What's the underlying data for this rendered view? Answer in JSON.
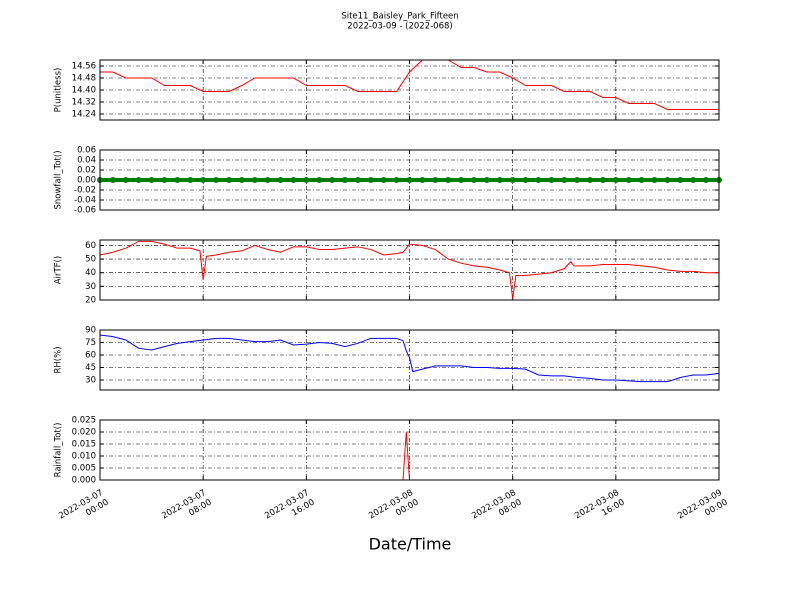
{
  "chart_data": [
    {
      "type": "line",
      "title": "Site11_Baisley_Park_Fifteen",
      "subtitle": "2022-03-09 - (2022-068)",
      "ylabel": "P(unitless)",
      "color": "#ff0000",
      "x": [
        "2022-03-07 00:00",
        "2022-03-07 01:00",
        "2022-03-07 02:00",
        "2022-03-07 03:00",
        "2022-03-07 04:00",
        "2022-03-07 05:00",
        "2022-03-07 06:00",
        "2022-03-07 07:00",
        "2022-03-07 08:00",
        "2022-03-07 09:00",
        "2022-03-07 10:00",
        "2022-03-07 11:00",
        "2022-03-07 12:00",
        "2022-03-07 13:00",
        "2022-03-07 14:00",
        "2022-03-07 15:00",
        "2022-03-07 16:00",
        "2022-03-07 17:00",
        "2022-03-07 18:00",
        "2022-03-07 19:00",
        "2022-03-07 20:00",
        "2022-03-07 21:00",
        "2022-03-07 22:00",
        "2022-03-07 23:00",
        "2022-03-08 00:00",
        "2022-03-08 01:00",
        "2022-03-08 02:00",
        "2022-03-08 03:00",
        "2022-03-08 04:00",
        "2022-03-08 05:00",
        "2022-03-08 06:00",
        "2022-03-08 07:00",
        "2022-03-08 08:00",
        "2022-03-08 09:00",
        "2022-03-08 10:00",
        "2022-03-08 11:00",
        "2022-03-08 12:00",
        "2022-03-08 13:00",
        "2022-03-08 14:00",
        "2022-03-08 15:00",
        "2022-03-08 16:00",
        "2022-03-08 17:00",
        "2022-03-08 18:00",
        "2022-03-08 19:00",
        "2022-03-08 20:00",
        "2022-03-08 21:00",
        "2022-03-08 22:00",
        "2022-03-08 23:00",
        "2022-03-09 00:00"
      ],
      "values": [
        14.52,
        14.52,
        14.48,
        14.48,
        14.48,
        14.43,
        14.43,
        14.43,
        14.39,
        14.39,
        14.39,
        14.43,
        14.48,
        14.48,
        14.48,
        14.48,
        14.43,
        14.43,
        14.43,
        14.43,
        14.39,
        14.39,
        14.39,
        14.39,
        14.52,
        14.6,
        14.6,
        14.6,
        14.55,
        14.55,
        14.52,
        14.52,
        14.48,
        14.43,
        14.43,
        14.43,
        14.39,
        14.39,
        14.39,
        14.35,
        14.35,
        14.31,
        14.31,
        14.31,
        14.27,
        14.27,
        14.27,
        14.27,
        14.27
      ],
      "xlim": [
        "2022-03-07 00:00",
        "2022-03-09 00:00"
      ],
      "ylim": [
        14.2,
        14.6
      ],
      "yticks": [
        14.24,
        14.32,
        {
          "value": 14.4,
          "label": "14.40"
        },
        14.48,
        14.56
      ],
      "grid": true
    },
    {
      "type": "line",
      "ylabel": "Snowfall_Tot()",
      "color": "#008000",
      "marker": "o",
      "x": [
        "2022-03-07 00:00",
        "2022-03-07 01:00",
        "2022-03-07 02:00",
        "2022-03-07 03:00",
        "2022-03-07 04:00",
        "2022-03-07 05:00",
        "2022-03-07 06:00",
        "2022-03-07 07:00",
        "2022-03-07 08:00",
        "2022-03-07 09:00",
        "2022-03-07 10:00",
        "2022-03-07 11:00",
        "2022-03-07 12:00",
        "2022-03-07 13:00",
        "2022-03-07 14:00",
        "2022-03-07 15:00",
        "2022-03-07 16:00",
        "2022-03-07 17:00",
        "2022-03-07 18:00",
        "2022-03-07 19:00",
        "2022-03-07 20:00",
        "2022-03-07 21:00",
        "2022-03-07 22:00",
        "2022-03-07 23:00",
        "2022-03-08 00:00",
        "2022-03-08 01:00",
        "2022-03-08 02:00",
        "2022-03-08 03:00",
        "2022-03-08 04:00",
        "2022-03-08 05:00",
        "2022-03-08 06:00",
        "2022-03-08 07:00",
        "2022-03-08 08:00",
        "2022-03-08 09:00",
        "2022-03-08 10:00",
        "2022-03-08 11:00",
        "2022-03-08 12:00",
        "2022-03-08 13:00",
        "2022-03-08 14:00",
        "2022-03-08 15:00",
        "2022-03-08 16:00",
        "2022-03-08 17:00",
        "2022-03-08 18:00",
        "2022-03-08 19:00",
        "2022-03-08 20:00",
        "2022-03-08 21:00",
        "2022-03-08 22:00",
        "2022-03-08 23:00",
        "2022-03-09 00:00"
      ],
      "values": [
        0,
        0,
        0,
        0,
        0,
        0,
        0,
        0,
        0,
        0,
        0,
        0,
        0,
        0,
        0,
        0,
        0,
        0,
        0,
        0,
        0,
        0,
        0,
        0,
        0,
        0,
        0,
        0,
        0,
        0,
        0,
        0,
        0,
        0,
        0,
        0,
        0,
        0,
        0,
        0,
        0,
        0,
        0,
        0,
        0,
        0,
        0,
        0,
        0
      ],
      "xlim": [
        "2022-03-07 00:00",
        "2022-03-09 00:00"
      ],
      "ylim": [
        -0.06,
        0.06
      ],
      "yticks": [
        -0.06,
        -0.04,
        -0.02,
        {
          "value": 0,
          "label": "0.00"
        },
        0.02,
        0.04,
        0.06
      ],
      "grid": true
    },
    {
      "type": "line",
      "ylabel": "AirTF()",
      "color": "#ff0000",
      "x": [
        "2022-03-07 00:00",
        "2022-03-07 01:00",
        "2022-03-07 02:00",
        "2022-03-07 03:00",
        "2022-03-07 04:00",
        "2022-03-07 05:00",
        "2022-03-07 06:00",
        "2022-03-07 07:00",
        "2022-03-07 07:45",
        "2022-03-07 08:00",
        "2022-03-07 08:15",
        "2022-03-07 09:00",
        "2022-03-07 10:00",
        "2022-03-07 11:00",
        "2022-03-07 12:00",
        "2022-03-07 13:00",
        "2022-03-07 14:00",
        "2022-03-07 15:00",
        "2022-03-07 16:00",
        "2022-03-07 17:00",
        "2022-03-07 18:00",
        "2022-03-07 19:00",
        "2022-03-07 20:00",
        "2022-03-07 21:00",
        "2022-03-07 22:00",
        "2022-03-07 23:00",
        "2022-03-07 23:30",
        "2022-03-08 00:00",
        "2022-03-08 01:00",
        "2022-03-08 02:00",
        "2022-03-08 03:00",
        "2022-03-08 04:00",
        "2022-03-08 05:00",
        "2022-03-08 06:00",
        "2022-03-08 07:00",
        "2022-03-08 07:45",
        "2022-03-08 08:00",
        "2022-03-08 08:15",
        "2022-03-08 09:00",
        "2022-03-08 10:00",
        "2022-03-08 11:00",
        "2022-03-08 12:00",
        "2022-03-08 12:30",
        "2022-03-08 12:45",
        "2022-03-08 13:00",
        "2022-03-08 14:00",
        "2022-03-08 15:00",
        "2022-03-08 16:00",
        "2022-03-08 17:00",
        "2022-03-08 18:00",
        "2022-03-08 19:00",
        "2022-03-08 20:00",
        "2022-03-08 21:00",
        "2022-03-08 22:00",
        "2022-03-08 23:00",
        "2022-03-09 00:00"
      ],
      "values": [
        53,
        55,
        58,
        63,
        63,
        61,
        58,
        58,
        56,
        35,
        52,
        53,
        55,
        56,
        60,
        57,
        55,
        59,
        59,
        57,
        57,
        58,
        59,
        57,
        53,
        54,
        55,
        61,
        60,
        57,
        50,
        47,
        45,
        44,
        42,
        40,
        21,
        38,
        38,
        39,
        40,
        43,
        48,
        45,
        45,
        45,
        46,
        46,
        46,
        45,
        44,
        42,
        41,
        41,
        40,
        40
      ],
      "xlim": [
        "2022-03-07 00:00",
        "2022-03-09 00:00"
      ],
      "ylim": [
        20,
        64
      ],
      "yticks": [
        20,
        30,
        40,
        50,
        60
      ],
      "grid": true
    },
    {
      "type": "line",
      "ylabel": "RH(%)",
      "color": "#0000ff",
      "x": [
        "2022-03-07 00:00",
        "2022-03-07 01:00",
        "2022-03-07 02:00",
        "2022-03-07 03:00",
        "2022-03-07 04:00",
        "2022-03-07 05:00",
        "2022-03-07 06:00",
        "2022-03-07 07:00",
        "2022-03-07 08:00",
        "2022-03-07 09:00",
        "2022-03-07 10:00",
        "2022-03-07 11:00",
        "2022-03-07 12:00",
        "2022-03-07 13:00",
        "2022-03-07 14:00",
        "2022-03-07 15:00",
        "2022-03-07 16:00",
        "2022-03-07 17:00",
        "2022-03-07 18:00",
        "2022-03-07 19:00",
        "2022-03-07 20:00",
        "2022-03-07 21:00",
        "2022-03-07 22:00",
        "2022-03-07 23:00",
        "2022-03-07 23:30",
        "2022-03-07 23:45",
        "2022-03-08 00:00",
        "2022-03-08 00:15",
        "2022-03-08 01:00",
        "2022-03-08 02:00",
        "2022-03-08 03:00",
        "2022-03-08 04:00",
        "2022-03-08 05:00",
        "2022-03-08 06:00",
        "2022-03-08 07:00",
        "2022-03-08 08:00",
        "2022-03-08 09:00",
        "2022-03-08 10:00",
        "2022-03-08 11:00",
        "2022-03-08 12:00",
        "2022-03-08 13:00",
        "2022-03-08 14:00",
        "2022-03-08 15:00",
        "2022-03-08 16:00",
        "2022-03-08 17:00",
        "2022-03-08 18:00",
        "2022-03-08 19:00",
        "2022-03-08 20:00",
        "2022-03-08 21:00",
        "2022-03-08 22:00",
        "2022-03-08 23:00",
        "2022-03-09 00:00"
      ],
      "values": [
        84,
        82,
        78,
        68,
        66,
        70,
        74,
        76,
        78,
        80,
        80,
        78,
        76,
        76,
        78,
        72,
        73,
        75,
        74,
        70,
        74,
        80,
        80,
        80,
        77,
        65,
        57,
        40,
        43,
        47,
        47,
        47,
        45,
        45,
        44,
        44,
        43,
        36,
        35,
        35,
        33,
        32,
        30,
        30,
        29,
        28,
        28,
        28,
        33,
        36,
        36,
        38
      ],
      "xlim": [
        "2022-03-07 00:00",
        "2022-03-09 00:00"
      ],
      "ylim": [
        18,
        90
      ],
      "yticks": [
        30,
        45,
        60,
        75,
        90
      ],
      "grid": true
    },
    {
      "type": "line",
      "ylabel": "Rainfall_Tot()",
      "xlabel": "Date/Time",
      "color": "#ff0000",
      "x": [
        "2022-03-07 00:00",
        "2022-03-07 23:30",
        "2022-03-07 23:45",
        "2022-03-08 00:00",
        "2022-03-09 00:00"
      ],
      "values": [
        0,
        0,
        0.02,
        0,
        0
      ],
      "xlim": [
        "2022-03-07 00:00",
        "2022-03-09 00:00"
      ],
      "ylim": [
        0,
        0.025
      ],
      "xticks": [
        "2022-03-07 00:00",
        "2022-03-07 08:00",
        "2022-03-07 16:00",
        "2022-03-08 00:00",
        "2022-03-08 08:00",
        "2022-03-08 16:00",
        "2022-03-09 00:00"
      ],
      "yticks": [
        {
          "value": 0,
          "label": "0.000"
        },
        0.005,
        {
          "value": 0.01,
          "label": "0.010"
        },
        0.015,
        {
          "value": 0.02,
          "label": "0.020"
        },
        0.025
      ],
      "grid": true
    }
  ]
}
